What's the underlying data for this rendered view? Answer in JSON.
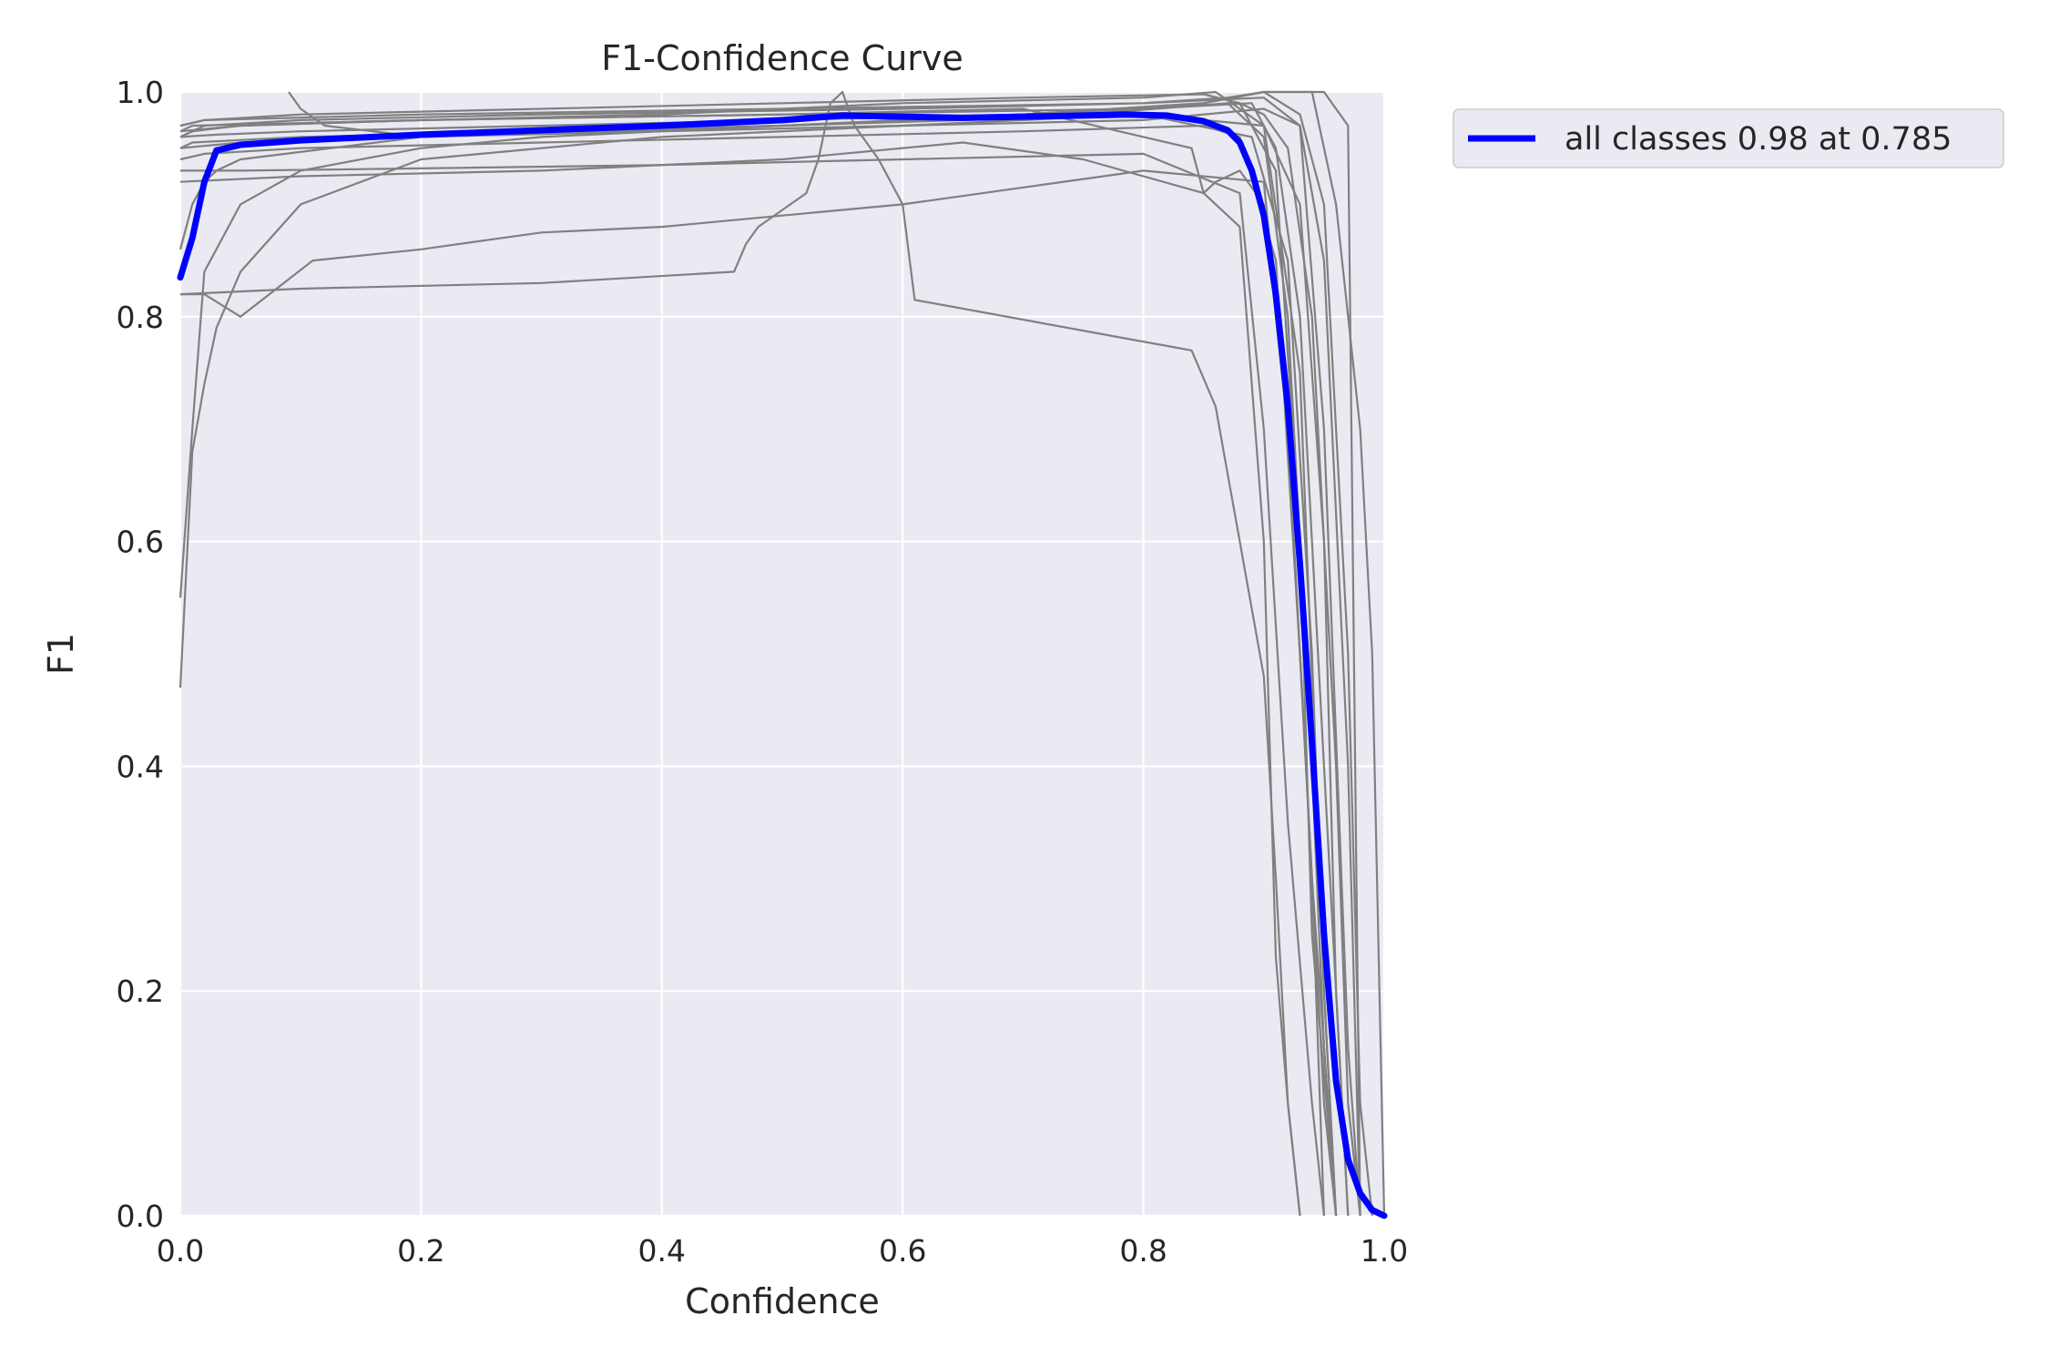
{
  "chart_data": {
    "type": "line",
    "title": "F1-Confidence Curve",
    "xlabel": "Confidence",
    "ylabel": "F1",
    "xlim": [
      0.0,
      1.0
    ],
    "ylim": [
      0.0,
      1.0
    ],
    "xticks": [
      "0.0",
      "0.2",
      "0.4",
      "0.6",
      "0.8",
      "1.0"
    ],
    "yticks": [
      "0.0",
      "0.2",
      "0.4",
      "0.6",
      "0.8",
      "1.0"
    ],
    "grid": true,
    "legend_position": "outside-top-right",
    "background_color": "#eaeaf2",
    "class_curve_color": "#808080",
    "main_curve_color": "#0000ff",
    "series": [
      {
        "name": "all classes 0.98 at 0.785",
        "x": [
          0.0,
          0.01,
          0.02,
          0.03,
          0.05,
          0.1,
          0.2,
          0.3,
          0.4,
          0.5,
          0.55,
          0.6,
          0.65,
          0.7,
          0.75,
          0.785,
          0.82,
          0.85,
          0.87,
          0.88,
          0.89,
          0.9,
          0.91,
          0.92,
          0.93,
          0.94,
          0.95,
          0.96,
          0.97,
          0.98,
          0.99,
          1.0
        ],
        "y": [
          0.835,
          0.87,
          0.92,
          0.948,
          0.953,
          0.957,
          0.962,
          0.966,
          0.97,
          0.975,
          0.979,
          0.978,
          0.977,
          0.978,
          0.979,
          0.98,
          0.979,
          0.974,
          0.966,
          0.955,
          0.93,
          0.89,
          0.82,
          0.72,
          0.58,
          0.42,
          0.25,
          0.12,
          0.05,
          0.02,
          0.005,
          0.0
        ]
      }
    ],
    "class_curves": [
      {
        "x": [
          0.0,
          0.02,
          0.1,
          0.3,
          0.5,
          0.7,
          0.85,
          0.88,
          0.9,
          0.92,
          0.94,
          0.96,
          0.97,
          0.98
        ],
        "y": [
          0.97,
          0.975,
          0.98,
          0.985,
          0.99,
          0.995,
          0.998,
          0.99,
          0.98,
          0.95,
          0.8,
          0.4,
          0.1,
          0.0
        ]
      },
      {
        "x": [
          0.0,
          0.05,
          0.2,
          0.4,
          0.6,
          0.8,
          0.86,
          0.9,
          0.93,
          0.95,
          0.96,
          0.97
        ],
        "y": [
          0.965,
          0.97,
          0.975,
          0.98,
          0.99,
          0.995,
          1.0,
          0.97,
          0.9,
          0.6,
          0.2,
          0.0
        ]
      },
      {
        "x": [
          0.0,
          0.03,
          0.1,
          0.3,
          0.5,
          0.7,
          0.85,
          0.9,
          0.93,
          0.95,
          0.97,
          0.98,
          0.99
        ],
        "y": [
          0.96,
          0.962,
          0.965,
          0.97,
          0.975,
          0.98,
          0.99,
          1.0,
          0.98,
          0.9,
          0.5,
          0.1,
          0.0
        ]
      },
      {
        "x": [
          0.0,
          0.01,
          0.1,
          0.3,
          0.5,
          0.75,
          0.87,
          0.9,
          0.92,
          0.94,
          0.95,
          0.96
        ],
        "y": [
          0.95,
          0.955,
          0.96,
          0.965,
          0.97,
          0.98,
          0.99,
          0.96,
          0.8,
          0.4,
          0.15,
          0.0
        ]
      },
      {
        "x": [
          0.0,
          0.02,
          0.1,
          0.3,
          0.5,
          0.7,
          0.85,
          0.88,
          0.91,
          0.93,
          0.95,
          0.96
        ],
        "y": [
          0.94,
          0.945,
          0.95,
          0.955,
          0.96,
          0.965,
          0.97,
          0.96,
          0.85,
          0.5,
          0.1,
          0.0
        ]
      },
      {
        "x": [
          0.0,
          0.01,
          0.02,
          0.03,
          0.05,
          0.1,
          0.2,
          0.4,
          0.6,
          0.8,
          0.89,
          0.92,
          0.94,
          0.95,
          0.96
        ],
        "y": [
          0.47,
          0.68,
          0.74,
          0.79,
          0.84,
          0.9,
          0.94,
          0.96,
          0.97,
          0.98,
          0.96,
          0.85,
          0.5,
          0.2,
          0.0
        ]
      },
      {
        "x": [
          0.0,
          0.01,
          0.02,
          0.05,
          0.11,
          0.2,
          0.3,
          0.4,
          0.5,
          0.6,
          0.8,
          0.9,
          0.92,
          0.94,
          0.96
        ],
        "y": [
          0.82,
          0.82,
          0.82,
          0.8,
          0.85,
          0.86,
          0.875,
          0.88,
          0.89,
          0.9,
          0.93,
          0.92,
          0.7,
          0.3,
          0.0
        ]
      },
      {
        "x": [
          0.0,
          0.1,
          0.3,
          0.46,
          0.47,
          0.48,
          0.5,
          0.52,
          0.53,
          0.54,
          0.55,
          0.56,
          0.58,
          0.6,
          0.61,
          0.84,
          0.86,
          0.87,
          0.88,
          0.9,
          0.91,
          0.92,
          0.93
        ],
        "y": [
          0.82,
          0.825,
          0.83,
          0.84,
          0.865,
          0.88,
          0.895,
          0.91,
          0.94,
          0.99,
          1.0,
          0.97,
          0.94,
          0.9,
          0.815,
          0.77,
          0.72,
          0.66,
          0.6,
          0.48,
          0.3,
          0.1,
          0.0
        ]
      },
      {
        "x": [
          0.0,
          0.1,
          0.3,
          0.5,
          0.65,
          0.75,
          0.85,
          0.88,
          0.9,
          0.91,
          0.92,
          0.93
        ],
        "y": [
          0.92,
          0.925,
          0.93,
          0.94,
          0.955,
          0.94,
          0.91,
          0.88,
          0.6,
          0.23,
          0.1,
          0.0
        ]
      },
      {
        "x": [
          0.0,
          0.05,
          0.2,
          0.4,
          0.6,
          0.8,
          0.88,
          0.9,
          0.92,
          0.94,
          0.95
        ],
        "y": [
          0.93,
          0.93,
          0.932,
          0.935,
          0.94,
          0.945,
          0.91,
          0.7,
          0.35,
          0.1,
          0.0
        ]
      },
      {
        "x": [
          0.0,
          0.01,
          0.02,
          0.05,
          0.1,
          0.2,
          0.3,
          0.4,
          0.6,
          0.8,
          0.89,
          0.91,
          0.93,
          0.95,
          0.97
        ],
        "y": [
          0.55,
          0.7,
          0.84,
          0.9,
          0.93,
          0.95,
          0.96,
          0.965,
          0.975,
          0.985,
          0.99,
          0.95,
          0.8,
          0.4,
          0.0
        ]
      },
      {
        "x": [
          0.09,
          0.1,
          0.12,
          0.2,
          0.4,
          0.6,
          0.8,
          0.9,
          0.93,
          0.95,
          0.97,
          0.98
        ],
        "y": [
          1.0,
          0.985,
          0.97,
          0.96,
          0.965,
          0.97,
          0.975,
          0.985,
          0.97,
          0.85,
          0.4,
          0.0
        ]
      },
      {
        "x": [
          0.0,
          0.02,
          0.1,
          0.3,
          0.6,
          0.8,
          0.87,
          0.9,
          0.95,
          0.97,
          0.98
        ],
        "y": [
          0.96,
          0.97,
          0.975,
          0.98,
          0.985,
          0.99,
          0.995,
          1.0,
          1.0,
          0.97,
          0.0
        ]
      },
      {
        "x": [
          0.0,
          0.05,
          0.2,
          0.5,
          0.7,
          0.85,
          0.9,
          0.94,
          0.96,
          0.98,
          0.99,
          1.0
        ],
        "y": [
          0.95,
          0.955,
          0.96,
          0.97,
          0.98,
          0.99,
          1.0,
          1.0,
          0.9,
          0.7,
          0.5,
          0.0
        ]
      },
      {
        "x": [
          0.0,
          0.01,
          0.05,
          0.2,
          0.5,
          0.7,
          0.84,
          0.85,
          0.86,
          0.88,
          0.9,
          0.92,
          0.94,
          0.95
        ],
        "y": [
          0.96,
          0.965,
          0.97,
          0.975,
          0.98,
          0.985,
          0.95,
          0.91,
          0.92,
          0.93,
          0.9,
          0.7,
          0.3,
          0.0
        ]
      },
      {
        "x": [
          0.0,
          0.01,
          0.02,
          0.03,
          0.05,
          0.2,
          0.5,
          0.8,
          0.9,
          0.93,
          0.95,
          0.96
        ],
        "y": [
          0.86,
          0.9,
          0.92,
          0.93,
          0.94,
          0.96,
          0.97,
          0.98,
          0.97,
          0.75,
          0.2,
          0.0
        ]
      },
      {
        "x": [
          0.0,
          0.01,
          0.2,
          0.5,
          0.8,
          0.88,
          0.91,
          0.93,
          0.94,
          0.96
        ],
        "y": [
          0.965,
          0.97,
          0.975,
          0.98,
          0.985,
          0.99,
          0.93,
          0.6,
          0.25,
          0.0
        ]
      },
      {
        "x": [
          0.0,
          0.02,
          0.2,
          0.5,
          0.8,
          0.9,
          0.93,
          0.95,
          0.97,
          0.98
        ],
        "y": [
          0.97,
          0.975,
          0.98,
          0.985,
          0.99,
          0.995,
          0.97,
          0.7,
          0.15,
          0.0
        ]
      }
    ]
  }
}
